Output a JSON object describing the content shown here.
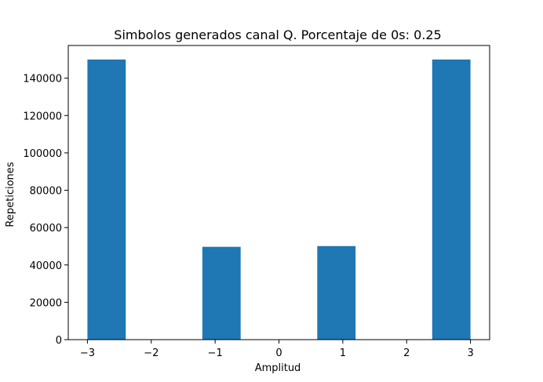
{
  "chart_data": {
    "type": "bar",
    "title": "Simbolos generados canal Q. Porcentaje de 0s: 0.25",
    "xlabel": "Amplitud",
    "ylabel": "Repeticiones",
    "xlim": [
      -3.3,
      3.3
    ],
    "ylim": [
      0,
      157500
    ],
    "xticks": [
      "−3",
      "−2",
      "−1",
      "0",
      "1",
      "2",
      "3"
    ],
    "xtick_values": [
      -3,
      -2,
      -1,
      0,
      1,
      2,
      3
    ],
    "yticks": [
      "0",
      "20000",
      "40000",
      "60000",
      "80000",
      "100000",
      "120000",
      "140000"
    ],
    "ytick_values": [
      0,
      20000,
      40000,
      60000,
      80000,
      100000,
      120000,
      140000
    ],
    "bin_width": 0.6,
    "bins": [
      {
        "start": -3.0,
        "value": 150000
      },
      {
        "start": -2.4,
        "value": 0
      },
      {
        "start": -1.8,
        "value": 0
      },
      {
        "start": -1.2,
        "value": 49700
      },
      {
        "start": -0.6,
        "value": 0
      },
      {
        "start": 0.0,
        "value": 0
      },
      {
        "start": 0.6,
        "value": 50100
      },
      {
        "start": 1.2,
        "value": 0
      },
      {
        "start": 1.8,
        "value": 0
      },
      {
        "start": 2.4,
        "value": 150000
      }
    ],
    "bar_color": "#1f77b4",
    "grid": false
  }
}
